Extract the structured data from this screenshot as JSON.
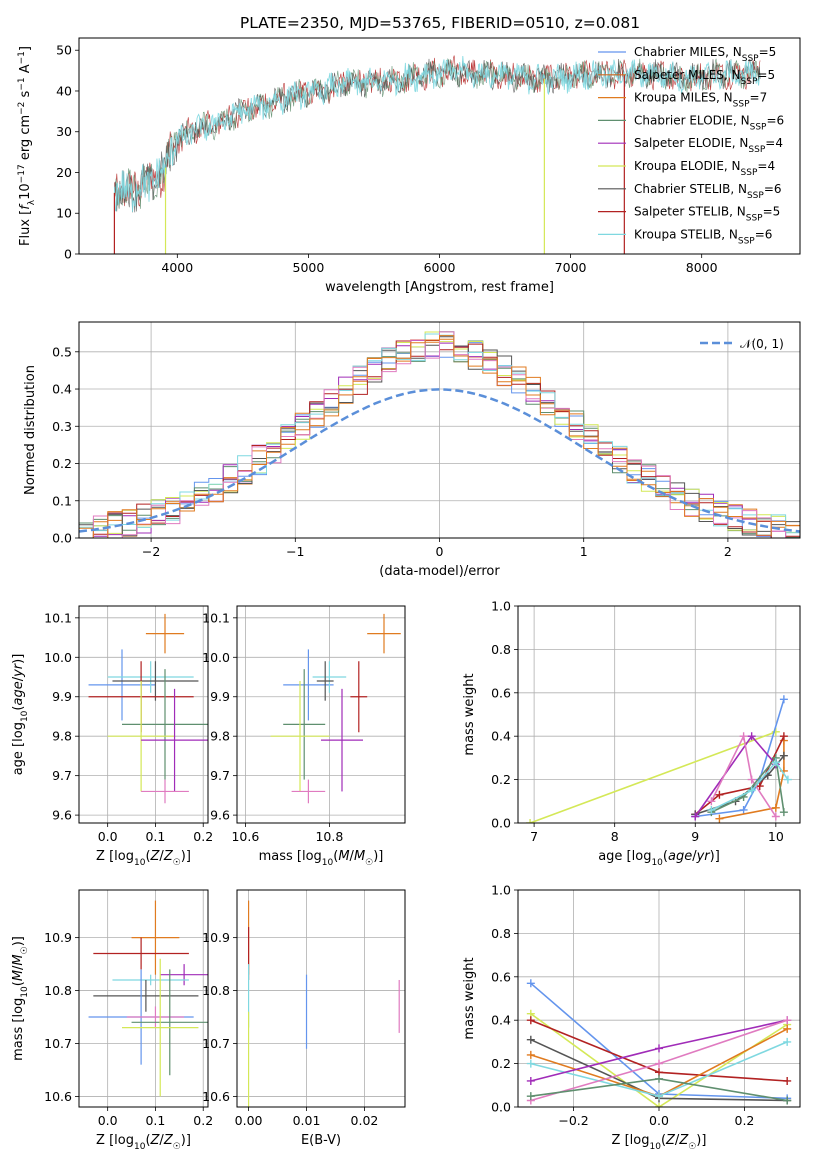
{
  "figure_title": "PLATE=2350, MJD=53765, FIBERID=0510, z=0.081",
  "legend_entries": [
    {
      "pre": "Chabrier MILES, N",
      "sub": "SSP",
      "post": "=5",
      "color": "#6495ed"
    },
    {
      "pre": "Salpeter MILES, N",
      "sub": "SSP",
      "post": "=5",
      "color": "#d2691e"
    },
    {
      "pre": "Kroupa MILES, N",
      "sub": "SSP",
      "post": "=7",
      "color": "#e07b20"
    },
    {
      "pre": "Chabrier ELODIE, N",
      "sub": "SSP",
      "post": "=6",
      "color": "#5f8f6f"
    },
    {
      "pre": "Salpeter ELODIE, N",
      "sub": "SSP",
      "post": "=4",
      "color": "#a02cb8"
    },
    {
      "pre": "Kroupa ELODIE, N",
      "sub": "SSP",
      "post": "=4",
      "color": "#d4e857"
    },
    {
      "pre": "Chabrier STELIB, N",
      "sub": "SSP",
      "post": "=6",
      "color": "#555555"
    },
    {
      "pre": "Salpeter STELIB, N",
      "sub": "SSP",
      "post": "=5",
      "color": "#b22222"
    },
    {
      "pre": "Kroupa STELIB, N",
      "sub": "SSP",
      "post": "=6",
      "color": "#7fd8e0"
    }
  ],
  "colors": {
    "cornflower": "#6495ed",
    "orange": "#e07b20",
    "green": "#5f8f6f",
    "purple": "#a02cb8",
    "yellow": "#d4e857",
    "dark": "#555555",
    "red": "#b22222",
    "cyan": "#7fd8e0",
    "pink": "#e07bc0",
    "gaussian": "#5b8fd9",
    "grid": "#b0b0b0"
  },
  "chart_data": [
    {
      "type": "line",
      "title": "PLATE=2350, MJD=53765, FIBERID=0510, z=0.081",
      "xlabel": "wavelength [Angstrom, rest frame]",
      "ylabel": "Flux [f_λ 10^-17 erg cm^-2 s^-1 A^-1]",
      "xlim": [
        3250,
        8750
      ],
      "ylim": [
        0,
        53
      ],
      "xticks": [
        4000,
        5000,
        6000,
        7000,
        8000
      ],
      "yticks": [
        0,
        10,
        20,
        30,
        40,
        50
      ],
      "grid": false,
      "legend_location": "right",
      "spectrum_envelope": {
        "x": [
          3520,
          3700,
          3900,
          3950,
          4100,
          4300,
          4500,
          4700,
          4900,
          5100,
          5300,
          5500,
          5700,
          5900,
          6100,
          6300,
          6500,
          6700,
          6900,
          7100,
          7300,
          7500,
          7700,
          7900,
          8100,
          8300,
          8450
        ],
        "y": [
          15,
          16,
          20,
          26,
          30,
          32,
          35,
          37,
          39,
          40,
          42,
          42,
          43,
          44,
          45,
          44,
          44,
          43,
          43,
          44,
          44,
          44,
          44,
          43,
          44,
          44,
          45
        ]
      },
      "dips": [
        {
          "x": 3520,
          "to": 0,
          "series": "Salpeter STELIB"
        },
        {
          "x": 3910,
          "to": 0,
          "series": "Kroupa ELODIE"
        },
        {
          "x": 6800,
          "to": 0,
          "series": "Kroupa ELODIE"
        },
        {
          "x": 7410,
          "to": 0,
          "series": "Salpeter STELIB"
        }
      ]
    },
    {
      "type": "histogram",
      "xlabel": "(data-model)/error",
      "ylabel": "Normed distribution",
      "xlim": [
        -2.5,
        2.5
      ],
      "ylim": [
        0,
        0.58
      ],
      "xticks": [
        -2,
        -1,
        0,
        1,
        2
      ],
      "yticks": [
        0.0,
        0.1,
        0.2,
        0.3,
        0.4,
        0.5
      ],
      "grid": true,
      "legend_location": "upper right",
      "legend_label": "𝒩(0, 1)",
      "bin_width": 0.1
    },
    {
      "type": "errorbar",
      "xlabel": "Z [log10(Z/Z☉)]",
      "ylabel": "age [log10(age/yr)]",
      "xlim": [
        -0.06,
        0.21
      ],
      "ylim": [
        9.58,
        10.13
      ],
      "xticks": [
        0.0,
        0.1,
        0.2
      ],
      "yticks": [
        9.6,
        9.7,
        9.8,
        9.9,
        10.0,
        10.1
      ],
      "grid": true,
      "points": [
        {
          "series": "orange",
          "x": 0.12,
          "xerr": 0.04,
          "y": 10.06,
          "yerr": 0.05
        },
        {
          "series": "cornflower",
          "x": 0.03,
          "xerr": 0.07,
          "y": 9.93,
          "yerr": 0.09
        },
        {
          "series": "cyan",
          "x": 0.09,
          "xerr": 0.09,
          "y": 9.95,
          "yerr": 0.04
        },
        {
          "series": "dark",
          "x": 0.1,
          "xerr": 0.09,
          "y": 9.94,
          "yerr": 0.05
        },
        {
          "series": "red",
          "x": 0.07,
          "xerr": 0.11,
          "y": 9.9,
          "yerr": 0.09
        },
        {
          "series": "green",
          "x": 0.12,
          "xerr": 0.09,
          "y": 9.83,
          "yerr": 0.14
        },
        {
          "series": "yellow",
          "x": 0.07,
          "xerr": 0.07,
          "y": 9.8,
          "yerr": 0.14
        },
        {
          "series": "purple",
          "x": 0.14,
          "xerr": 0.07,
          "y": 9.79,
          "yerr": 0.13
        },
        {
          "series": "pink",
          "x": 0.12,
          "xerr": 0.05,
          "y": 9.66,
          "yerr": 0.03
        }
      ]
    },
    {
      "type": "errorbar",
      "xlabel": "mass [log10(M/M☉)]",
      "ylabel": "",
      "xlim": [
        10.58,
        10.98
      ],
      "ylim": [
        9.58,
        10.13
      ],
      "xticks": [
        10.6,
        10.8
      ],
      "yticks": [
        9.6,
        9.7,
        9.8,
        9.9,
        10.0,
        10.1
      ],
      "grid": true,
      "points": [
        {
          "series": "orange",
          "x": 10.93,
          "xerr": 0.04,
          "y": 10.06,
          "yerr": 0.05
        },
        {
          "series": "cornflower",
          "x": 10.75,
          "xerr": 0.06,
          "y": 9.93,
          "yerr": 0.09
        },
        {
          "series": "cyan",
          "x": 10.8,
          "xerr": 0.04,
          "y": 9.95,
          "yerr": 0.04
        },
        {
          "series": "dark",
          "x": 10.79,
          "xerr": 0.02,
          "y": 9.94,
          "yerr": 0.05
        },
        {
          "series": "red",
          "x": 10.87,
          "xerr": 0.02,
          "y": 9.9,
          "yerr": 0.09
        },
        {
          "series": "green",
          "x": 10.74,
          "xerr": 0.05,
          "y": 9.83,
          "yerr": 0.14
        },
        {
          "series": "yellow",
          "x": 10.73,
          "xerr": 0.07,
          "y": 9.8,
          "yerr": 0.14
        },
        {
          "series": "purple",
          "x": 10.83,
          "xerr": 0.05,
          "y": 9.79,
          "yerr": 0.13
        },
        {
          "series": "pink",
          "x": 10.75,
          "xerr": 0.04,
          "y": 9.66,
          "yerr": 0.03
        }
      ]
    },
    {
      "type": "line",
      "xlabel": "age [log10(age/yr)]",
      "ylabel": "mass weight",
      "xlim": [
        6.8,
        10.3
      ],
      "ylim": [
        0,
        1.0
      ],
      "xticks": [
        7,
        8,
        9,
        10
      ],
      "yticks": [
        0.0,
        0.2,
        0.4,
        0.6,
        0.8,
        1.0
      ],
      "grid": true,
      "series": [
        {
          "name": "yellow",
          "x": [
            6.95,
            10.0
          ],
          "y": [
            0.0,
            0.42
          ]
        },
        {
          "name": "cornflower",
          "x": [
            9.0,
            9.6,
            9.8,
            10.1
          ],
          "y": [
            0.03,
            0.06,
            0.2,
            0.57
          ]
        },
        {
          "name": "orange",
          "x": [
            9.3,
            10.0,
            10.1,
            10.1
          ],
          "y": [
            0.02,
            0.07,
            0.24,
            0.38
          ]
        },
        {
          "name": "red",
          "x": [
            9.0,
            9.3,
            9.8,
            10.1
          ],
          "y": [
            0.04,
            0.13,
            0.17,
            0.4
          ]
        },
        {
          "name": "dark",
          "x": [
            9.0,
            9.5,
            9.9,
            10.1
          ],
          "y": [
            0.04,
            0.1,
            0.22,
            0.31
          ]
        },
        {
          "name": "purple",
          "x": [
            9.0,
            9.7,
            10.0
          ],
          "y": [
            0.03,
            0.4,
            0.27
          ]
        },
        {
          "name": "pink",
          "x": [
            9.2,
            9.6,
            9.7,
            10.0
          ],
          "y": [
            0.1,
            0.4,
            0.2,
            0.03
          ]
        },
        {
          "name": "green",
          "x": [
            9.2,
            9.6,
            10.0,
            10.1
          ],
          "y": [
            0.05,
            0.12,
            0.3,
            0.05
          ]
        },
        {
          "name": "cyan",
          "x": [
            9.2,
            9.7,
            10.0,
            10.15
          ],
          "y": [
            0.06,
            0.15,
            0.28,
            0.2
          ]
        }
      ]
    },
    {
      "type": "errorbar",
      "xlabel": "Z [log10(Z/Z☉)]",
      "ylabel": "mass [log10(M/M☉)]",
      "xlim": [
        -0.06,
        0.21
      ],
      "ylim": [
        10.58,
        10.99
      ],
      "xticks": [
        0.0,
        0.1,
        0.2
      ],
      "yticks": [
        10.6,
        10.7,
        10.8,
        10.9
      ],
      "grid": true,
      "points": [
        {
          "series": "orange",
          "x": 0.1,
          "xerr": 0.05,
          "y": 10.9,
          "yerr": 0.07
        },
        {
          "series": "red",
          "x": 0.07,
          "xerr": 0.1,
          "y": 10.87,
          "yerr": 0.03
        },
        {
          "series": "purple",
          "x": 0.16,
          "xerr": 0.05,
          "y": 10.83,
          "yerr": 0.02
        },
        {
          "series": "cyan",
          "x": 0.09,
          "xerr": 0.08,
          "y": 10.82,
          "yerr": 0.01
        },
        {
          "series": "dark",
          "x": 0.08,
          "xerr": 0.11,
          "y": 10.79,
          "yerr": 0.03
        },
        {
          "series": "cornflower",
          "x": 0.07,
          "xerr": 0.11,
          "y": 10.75,
          "yerr": 0.09
        },
        {
          "series": "pink",
          "x": 0.1,
          "xerr": 0.06,
          "y": 10.75,
          "yerr": 0.02
        },
        {
          "series": "green",
          "x": 0.13,
          "xerr": 0.08,
          "y": 10.74,
          "yerr": 0.1
        },
        {
          "series": "yellow",
          "x": 0.11,
          "xerr": 0.08,
          "y": 10.73,
          "yerr": 0.13
        }
      ]
    },
    {
      "type": "errorbar",
      "xlabel": "E(B-V)",
      "ylabel": "",
      "xlim": [
        -0.002,
        0.027
      ],
      "ylim": [
        10.58,
        10.99
      ],
      "xticks": [
        0.0,
        0.01,
        0.02
      ],
      "yticks": [
        10.6,
        10.7,
        10.8,
        10.9
      ],
      "grid": true,
      "points": [
        {
          "series": "orange",
          "x": 0.0,
          "xerr": 0,
          "y": 10.9,
          "yerr": 0.07
        },
        {
          "series": "red",
          "x": 0.0,
          "xerr": 0,
          "y": 10.87,
          "yerr": 0.05
        },
        {
          "series": "cyan",
          "x": 0.0,
          "xerr": 0,
          "y": 10.79,
          "yerr": 0.06
        },
        {
          "series": "yellow",
          "x": 0.0,
          "xerr": 0,
          "y": 10.67,
          "yerr": 0.09
        },
        {
          "series": "cornflower",
          "x": 0.01,
          "xerr": 0,
          "y": 10.76,
          "yerr": 0.07
        },
        {
          "series": "pink",
          "x": 0.026,
          "xerr": 0,
          "y": 10.77,
          "yerr": 0.05
        }
      ]
    },
    {
      "type": "line",
      "xlabel": "Z [log10(Z/Z☉)]",
      "ylabel": "mass weight",
      "xlim": [
        -0.33,
        0.33
      ],
      "ylim": [
        0,
        1.0
      ],
      "xticks": [
        -0.2,
        0.0,
        0.2
      ],
      "yticks": [
        0.0,
        0.2,
        0.4,
        0.6,
        0.8,
        1.0
      ],
      "grid": true,
      "series": [
        {
          "name": "cornflower",
          "x": [
            -0.3,
            0.0,
            0.3
          ],
          "y": [
            0.57,
            0.06,
            0.04
          ]
        },
        {
          "name": "yellow",
          "x": [
            -0.3,
            0.0,
            0.3
          ],
          "y": [
            0.43,
            0.0,
            0.38
          ]
        },
        {
          "name": "red",
          "x": [
            -0.3,
            0.0,
            0.3
          ],
          "y": [
            0.4,
            0.16,
            0.12
          ]
        },
        {
          "name": "dark",
          "x": [
            -0.3,
            0.0,
            0.3
          ],
          "y": [
            0.31,
            0.04,
            0.03
          ]
        },
        {
          "name": "orange",
          "x": [
            -0.3,
            0.0,
            0.3
          ],
          "y": [
            0.24,
            0.05,
            0.36
          ]
        },
        {
          "name": "cyan",
          "x": [
            -0.3,
            0.0,
            0.3
          ],
          "y": [
            0.2,
            0.05,
            0.3
          ]
        },
        {
          "name": "purple",
          "x": [
            -0.3,
            0.0,
            0.3
          ],
          "y": [
            0.12,
            0.27,
            0.4
          ]
        },
        {
          "name": "pink",
          "x": [
            -0.3,
            0.0,
            0.3
          ],
          "y": [
            0.03,
            0.2,
            0.4
          ]
        },
        {
          "name": "green",
          "x": [
            -0.3,
            0.0,
            0.3
          ],
          "y": [
            0.05,
            0.13,
            0.03
          ]
        }
      ]
    }
  ]
}
